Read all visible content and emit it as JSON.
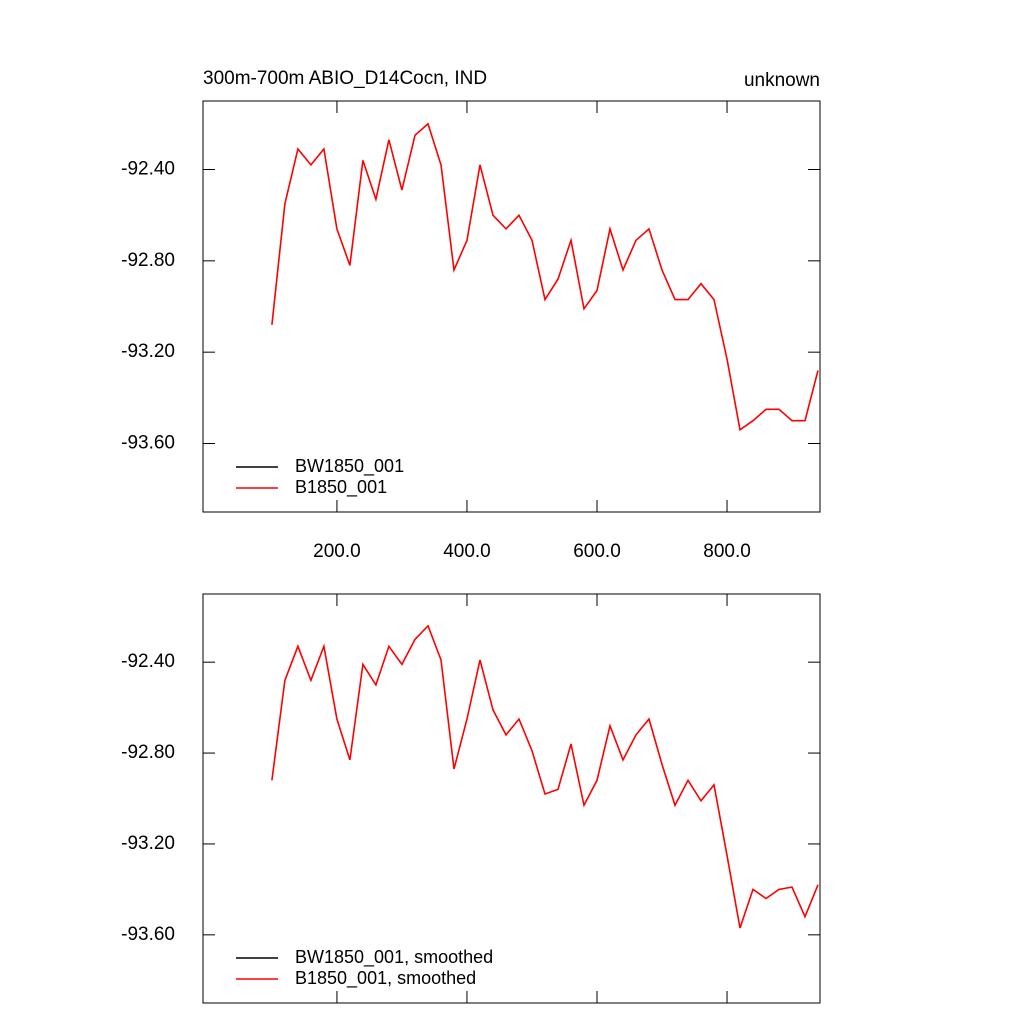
{
  "chart_data": [
    {
      "type": "line",
      "title": "300m-700m ABIO_D14Cocn, IND",
      "subtitle": "unknown",
      "x": [
        100,
        120,
        140,
        160,
        180,
        200,
        220,
        240,
        260,
        280,
        300,
        320,
        340,
        360,
        380,
        400,
        420,
        440,
        460,
        480,
        500,
        520,
        540,
        560,
        580,
        600,
        620,
        640,
        660,
        680,
        700,
        720,
        740,
        760,
        780,
        800,
        820,
        840,
        860,
        880,
        900,
        920,
        940
      ],
      "series": [
        {
          "name": "BW1850_001",
          "color": "#000000",
          "values": [
            null,
            null,
            null,
            null,
            null,
            null,
            null,
            null,
            null,
            null,
            null,
            null,
            null,
            null,
            null,
            null,
            null,
            null,
            null,
            null,
            null,
            null,
            null,
            null,
            null,
            null,
            null,
            null,
            null,
            null,
            null,
            null,
            null,
            null,
            null,
            null,
            null,
            null,
            null,
            null,
            null,
            null,
            null
          ]
        },
        {
          "name": "B1850_001",
          "color": "#ff0000",
          "values": [
            -93.08,
            -92.55,
            -92.31,
            -92.38,
            -92.31,
            -92.66,
            -92.82,
            -92.36,
            -92.53,
            -92.27,
            -92.49,
            -92.25,
            -92.2,
            -92.38,
            -92.84,
            -92.71,
            -92.38,
            -92.6,
            -92.66,
            -92.6,
            -92.71,
            -92.97,
            -92.88,
            -92.71,
            -93.01,
            -92.93,
            -92.66,
            -92.84,
            -92.71,
            -92.66,
            -92.84,
            -92.97,
            -92.97,
            -92.9,
            -92.97,
            -93.23,
            -93.54,
            -93.5,
            -93.45,
            -93.45,
            -93.5,
            -93.5,
            -93.28
          ]
        }
      ],
      "xlim": [
        -6,
        943
      ],
      "xticks": [
        {
          "value": 200,
          "label": "200.0"
        },
        {
          "value": 400,
          "label": "400.0"
        },
        {
          "value": 600,
          "label": "600.0"
        },
        {
          "value": 800,
          "label": "800.0"
        }
      ],
      "ylim": [
        -93.9,
        -92.1
      ],
      "yticks": [
        {
          "value": -92.4,
          "label": "-92.40"
        },
        {
          "value": -92.8,
          "label": "-92.80"
        },
        {
          "value": -93.2,
          "label": "-93.20"
        },
        {
          "value": -93.6,
          "label": "-93.60"
        }
      ],
      "legend": "lower left"
    },
    {
      "type": "line",
      "x": [
        100,
        120,
        140,
        160,
        180,
        200,
        220,
        240,
        260,
        280,
        300,
        320,
        340,
        360,
        380,
        400,
        420,
        440,
        460,
        480,
        500,
        520,
        540,
        560,
        580,
        600,
        620,
        640,
        660,
        680,
        700,
        720,
        740,
        760,
        780,
        800,
        820,
        840,
        860,
        880,
        900,
        920,
        940
      ],
      "series": [
        {
          "name": "BW1850_001, smoothed",
          "color": "#000000",
          "values": [
            null,
            null,
            null,
            null,
            null,
            null,
            null,
            null,
            null,
            null,
            null,
            null,
            null,
            null,
            null,
            null,
            null,
            null,
            null,
            null,
            null,
            null,
            null,
            null,
            null,
            null,
            null,
            null,
            null,
            null,
            null,
            null,
            null,
            null,
            null,
            null,
            null,
            null,
            null,
            null,
            null,
            null,
            null
          ]
        },
        {
          "name": "B1850_001, smoothed",
          "color": "#ff0000",
          "values": [
            -92.92,
            -92.48,
            -92.33,
            -92.48,
            -92.33,
            -92.65,
            -92.83,
            -92.41,
            -92.5,
            -92.33,
            -92.41,
            -92.3,
            -92.24,
            -92.39,
            -92.87,
            -92.65,
            -92.39,
            -92.61,
            -92.72,
            -92.65,
            -92.79,
            -92.98,
            -92.96,
            -92.76,
            -93.03,
            -92.92,
            -92.68,
            -92.83,
            -92.72,
            -92.65,
            -92.85,
            -93.03,
            -92.92,
            -93.01,
            -92.94,
            -93.25,
            -93.57,
            -93.4,
            -93.44,
            -93.4,
            -93.39,
            -93.52,
            -93.38
          ]
        }
      ],
      "xlim": [
        -6,
        943
      ],
      "xticks": [
        {
          "value": 200,
          "label": "200.0"
        },
        {
          "value": 400,
          "label": "400.0"
        },
        {
          "value": 600,
          "label": "600.0"
        },
        {
          "value": 800,
          "label": "800.0"
        }
      ],
      "ylim": [
        -93.9,
        -92.1
      ],
      "yticks": [
        {
          "value": -92.4,
          "label": "-92.40"
        },
        {
          "value": -92.8,
          "label": "-92.80"
        },
        {
          "value": -93.2,
          "label": "-93.20"
        },
        {
          "value": -93.6,
          "label": "-93.60"
        }
      ],
      "legend": "lower left"
    }
  ]
}
